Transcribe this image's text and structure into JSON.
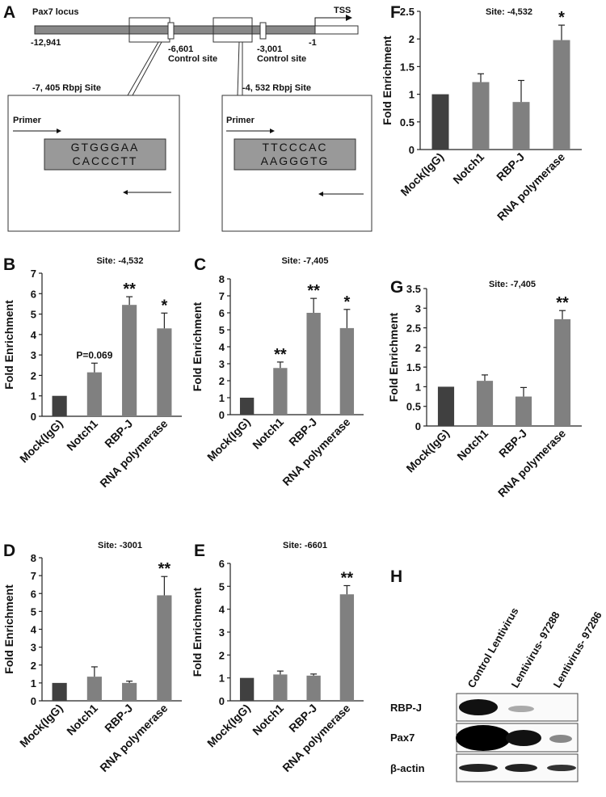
{
  "diagram": {
    "panel": "A",
    "locus": "Pax7 locus",
    "tss": "TSS",
    "positions": [
      "-12,941",
      "-6,601",
      "-3,001",
      "-1"
    ],
    "control_labels": [
      "Control site",
      "Control site"
    ],
    "sites": [
      {
        "label": "-7, 405 Rbpj Site",
        "primer": "Primer",
        "seq_top": "GTGGGAA",
        "seq_bottom": "CACCCTT"
      },
      {
        "label": "-4, 532 Rbpj Site",
        "primer": "Primer",
        "seq_top": "TTCCCAC",
        "seq_bottom": "AAGGGTG"
      }
    ]
  },
  "chart_data": [
    {
      "type": "bar",
      "panel": "B",
      "title": "Site: -4,532",
      "y_label": "Fold Enrichment",
      "categories": [
        "Mock(IgG)",
        "Notch1",
        "RBP-J",
        "RNA polymerase"
      ],
      "values": [
        1,
        2.15,
        5.45,
        4.3
      ],
      "errors": [
        0,
        0.45,
        0.4,
        0.75
      ],
      "colors": [
        "#404040",
        "#808080",
        "#808080",
        "#808080"
      ],
      "annotations": [
        null,
        "P=0.069",
        "**",
        "*"
      ],
      "ylim": [
        0,
        7
      ],
      "yticks": [
        0,
        1,
        2,
        3,
        4,
        5,
        6,
        7
      ]
    },
    {
      "type": "bar",
      "panel": "C",
      "title": "Site: -7,405",
      "y_label": "Fold Enrichment",
      "categories": [
        "Mock(IgG)",
        "Notch1",
        "RBP-J",
        "RNA polymerase"
      ],
      "values": [
        1,
        2.75,
        6.0,
        5.1
      ],
      "errors": [
        0,
        0.35,
        0.85,
        1.1
      ],
      "colors": [
        "#404040",
        "#808080",
        "#808080",
        "#808080"
      ],
      "annotations": [
        null,
        "**",
        "**",
        "*"
      ],
      "ylim": [
        0,
        8
      ],
      "yticks": [
        0,
        1,
        2,
        3,
        4,
        5,
        6,
        7,
        8
      ]
    },
    {
      "type": "bar",
      "panel": "D",
      "title": "Site: -3001",
      "y_label": "Fold Enrichment",
      "categories": [
        "Mock(IgG)",
        "Notch1",
        "RBP-J",
        "RNA polymerase"
      ],
      "values": [
        1,
        1.35,
        1.0,
        5.9
      ],
      "errors": [
        0,
        0.55,
        0.1,
        1.05
      ],
      "colors": [
        "#404040",
        "#808080",
        "#808080",
        "#808080"
      ],
      "annotations": [
        null,
        null,
        null,
        "**"
      ],
      "ylim": [
        0,
        8
      ],
      "yticks": [
        0,
        1,
        2,
        3,
        4,
        5,
        6,
        7,
        8
      ]
    },
    {
      "type": "bar",
      "panel": "E",
      "title": "Site: -6601",
      "y_label": "Fold Enrichment",
      "categories": [
        "Mock(IgG)",
        "Notch1",
        "RBP-J",
        "RNA polymerase"
      ],
      "values": [
        1,
        1.15,
        1.1,
        4.65
      ],
      "errors": [
        0,
        0.15,
        0.07,
        0.38
      ],
      "colors": [
        "#404040",
        "#808080",
        "#808080",
        "#808080"
      ],
      "annotations": [
        null,
        null,
        null,
        "**"
      ],
      "ylim": [
        0,
        6
      ],
      "yticks": [
        0,
        1,
        2,
        3,
        4,
        5,
        6
      ]
    },
    {
      "type": "bar",
      "panel": "F",
      "title": "Site: -4,532",
      "y_label": "Fold Enrichment",
      "categories": [
        "Mock(IgG)",
        "Notch1",
        "RBP-J",
        "RNA polymerase"
      ],
      "values": [
        1,
        1.22,
        0.86,
        1.98
      ],
      "errors": [
        0,
        0.15,
        0.39,
        0.27
      ],
      "colors": [
        "#404040",
        "#808080",
        "#808080",
        "#808080"
      ],
      "annotations": [
        null,
        null,
        null,
        "*"
      ],
      "ylim": [
        0,
        2.5
      ],
      "yticks": [
        0,
        0.5,
        1,
        1.5,
        2,
        2.5
      ]
    },
    {
      "type": "bar",
      "panel": "G",
      "title": "Site: -7,405",
      "y_label": "Fold Enrichment",
      "categories": [
        "Mock(IgG)",
        "Notch1",
        "RBP-J",
        "RNA polymerase"
      ],
      "values": [
        1,
        1.15,
        0.75,
        2.72
      ],
      "errors": [
        0,
        0.15,
        0.23,
        0.22
      ],
      "colors": [
        "#404040",
        "#808080",
        "#808080",
        "#808080"
      ],
      "annotations": [
        null,
        null,
        null,
        "**"
      ],
      "ylim": [
        0,
        3.5
      ],
      "yticks": [
        0,
        0.5,
        1,
        1.5,
        2,
        2.5,
        3,
        3.5
      ]
    }
  ],
  "blot": {
    "panel": "H",
    "lanes": [
      "Control Lentivirus",
      "Lentivirus- 97288",
      "Lentivirus- 97286"
    ],
    "rows": [
      "RBP-J",
      "Pax7",
      "β-actin"
    ]
  }
}
